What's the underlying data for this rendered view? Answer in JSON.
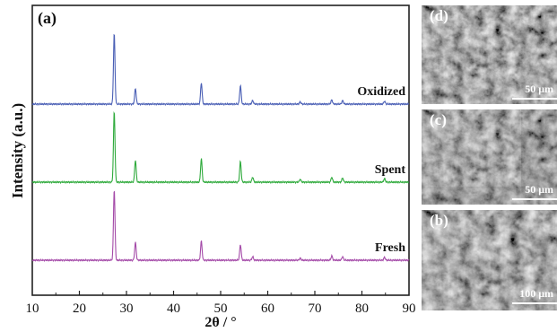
{
  "chart_data": {
    "type": "line",
    "panel_label": "(a)",
    "xlabel": "2θ / °",
    "ylabel": "Intensity (a.u.)",
    "xlim": [
      10,
      90
    ],
    "xticks": [
      "10",
      "20",
      "30",
      "40",
      "50",
      "60",
      "70",
      "80",
      "90"
    ],
    "grid": false,
    "peak_positions": [
      27.4,
      31.9,
      45.9,
      54.2,
      56.8,
      66.9,
      73.6,
      75.9,
      84.8
    ],
    "series": [
      {
        "name": "Oxidized",
        "color": "#4a5fb5",
        "offset": 2.0,
        "peaks": [
          1.0,
          0.22,
          0.3,
          0.26,
          0.05,
          0.03,
          0.06,
          0.05,
          0.04
        ]
      },
      {
        "name": "Spent",
        "color": "#2faa3c",
        "offset": 1.0,
        "peaks": [
          1.0,
          0.31,
          0.33,
          0.29,
          0.07,
          0.04,
          0.07,
          0.06,
          0.05
        ]
      },
      {
        "name": "Fresh",
        "color": "#a44aa8",
        "offset": 0.0,
        "peaks": [
          1.0,
          0.25,
          0.27,
          0.22,
          0.05,
          0.03,
          0.06,
          0.05,
          0.04
        ]
      }
    ]
  },
  "sem_panels": [
    {
      "letter": "(d)",
      "scale": "50 μm"
    },
    {
      "letter": "(c)",
      "scale": "50 μm"
    },
    {
      "letter": "(b)",
      "scale": "100 μm"
    }
  ]
}
